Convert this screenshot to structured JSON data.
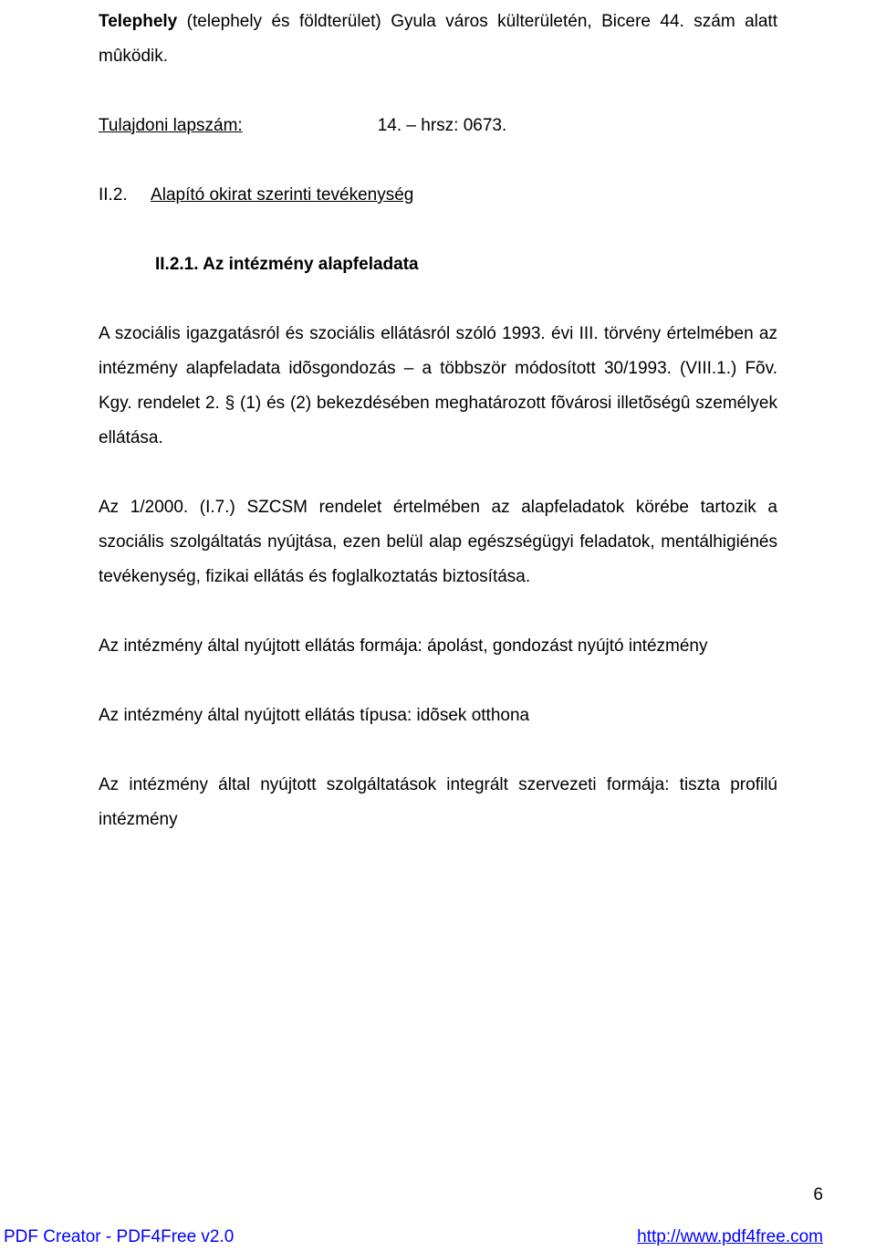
{
  "p1_prefix": "Telephely",
  "p1_body": " (telephely és földterület) Gyula város külterületén, Bicere 44. szám alatt mûködik.",
  "row_left": "Tulajdoni lapszám:",
  "row_right": "14. – hrsz: 0673.",
  "s2_num": "II.2.",
  "s2_title_rest": "Alapító okirat szerinti tevékenység",
  "s21": "II.2.1. Az intézmény alapfeladata",
  "p3": "A szociális igazgatásról és szociális ellátásról szóló 1993. évi III. törvény értelmében az intézmény alapfeladata idõsgondozás – a többször módosított 30/1993. (VIII.1.) Fõv. Kgy. rendelet 2. § (1) és (2) bekezdésében meghatározott fõvárosi illetõségû személyek ellátása.",
  "p4": "Az 1/2000. (I.7.) SZCSM rendelet értelmében az alapfeladatok körébe tartozik a szociális szolgáltatás nyújtása, ezen belül alap egészségügyi feladatok, mentálhigiénés tevékenység, fizikai ellátás és foglalkoztatás biztosítása.",
  "p5": "Az intézmény által nyújtott ellátás formája: ápolást, gondozást nyújtó intézmény",
  "p6": "Az intézmény által nyújtott ellátás típusa: idõsek otthona",
  "p7": "Az intézmény által nyújtott szolgáltatások integrált szervezeti formája: tiszta profilú intézmény",
  "pagenum": "6",
  "footer_left": "PDF Creator - PDF4Free v2.0",
  "footer_right": "http://www.pdf4free.com"
}
